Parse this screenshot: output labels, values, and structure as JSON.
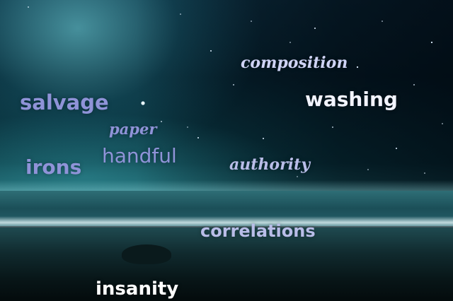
{
  "words": [
    {
      "text": "composition",
      "color": "#cfd3f5"
    },
    {
      "text": "salvage",
      "color": "#8f93d8"
    },
    {
      "text": "washing",
      "color": "#f2f4ff"
    },
    {
      "text": "paper",
      "color": "#8f93d8"
    },
    {
      "text": "handful",
      "color": "#8f93d8"
    },
    {
      "text": "irons",
      "color": "#8f93d8"
    },
    {
      "text": "authority",
      "color": "#b9bde8"
    },
    {
      "text": "correlations",
      "color": "#b9bde8"
    },
    {
      "text": "insanity",
      "color": "#ffffff"
    }
  ]
}
